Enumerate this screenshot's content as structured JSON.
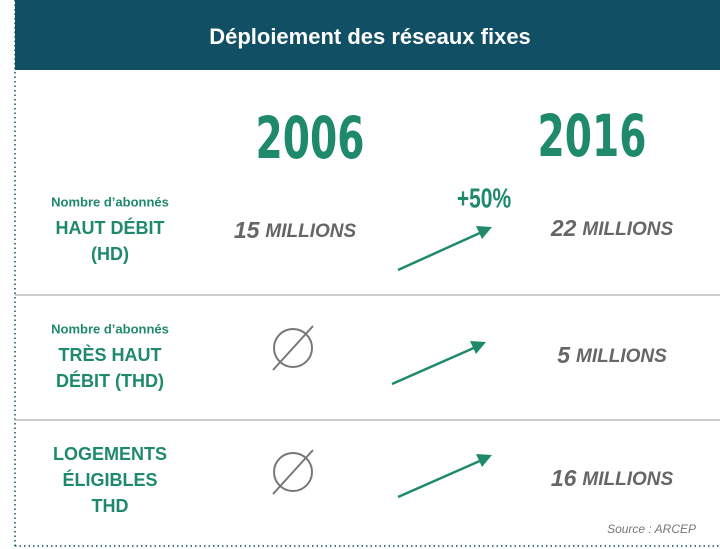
{
  "header": {
    "title": "Déploiement des réseaux fixes"
  },
  "columns": [
    "2006",
    "2016"
  ],
  "growth": "+50%",
  "rows": [
    {
      "sublabel": "Nombre d’abonnés",
      "label_lines": [
        "HAUT DÉBIT",
        "(HD)"
      ],
      "v2006": {
        "number": "15",
        "unit": "MILLIONS"
      },
      "v2016": {
        "number": "22",
        "unit": "MILLIONS"
      }
    },
    {
      "sublabel": "Nombre d’abonnés",
      "label_lines": [
        "TRÈS HAUT",
        "DÉBIT (THD)"
      ],
      "v2016": {
        "number": "5",
        "unit": "MILLIONS"
      }
    },
    {
      "label_lines": [
        "LOGEMENTS",
        "ÉLIGIBLES",
        "THD"
      ],
      "v2016": {
        "number": "16",
        "unit": "MILLIONS"
      }
    }
  ],
  "source": "Source : ARCEP"
}
